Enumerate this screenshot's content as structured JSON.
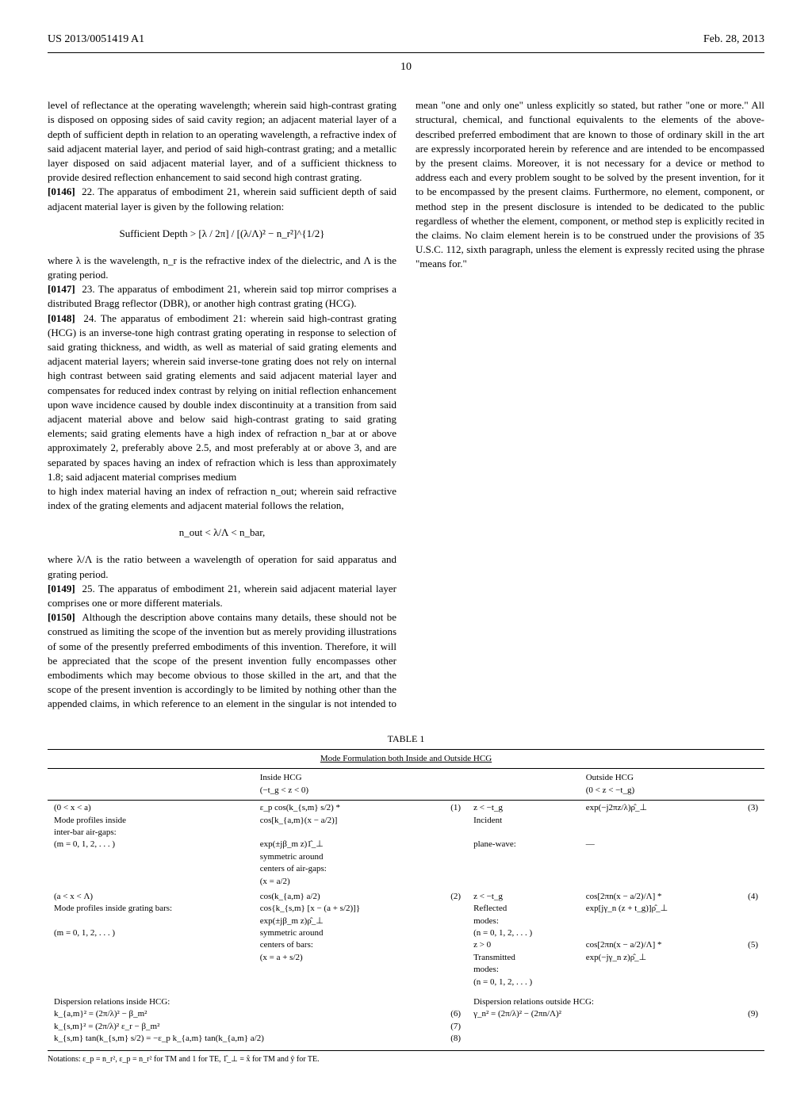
{
  "header": {
    "left": "US 2013/0051419 A1",
    "right": "Feb. 28, 2013"
  },
  "page_number": "10",
  "col1": {
    "p1": "level of reflectance at the operating wavelength; wherein said high-contrast grating is disposed on opposing sides of said cavity region; an adjacent material layer of a depth of sufficient depth in relation to an operating wavelength, a refractive index of said adjacent material layer, and period of said high-contrast grating; and a metallic layer disposed on said adjacent material layer, and of a sufficient thickness to provide desired reflection enhancement to said second high contrast grating.",
    "p2_num": "[0146]",
    "p2": "22. The apparatus of embodiment 21, wherein said sufficient depth of said adjacent material layer is given by the following relation:",
    "formula1": "Sufficient Depth > [λ / 2π] / [(λ/Λ)² − n_r²]^{1/2}",
    "p3": "where λ is the wavelength, n_r is the refractive index of the dielectric, and Λ is the grating period.",
    "p4_num": "[0147]",
    "p4": "23. The apparatus of embodiment 21, wherein said top mirror comprises a distributed Bragg reflector (DBR), or another high contrast grating (HCG).",
    "p5_num": "[0148]",
    "p5": "24. The apparatus of embodiment 21: wherein said high-contrast grating (HCG) is an inverse-tone high contrast grating operating in response to selection of said grating thickness, and width, as well as material of said grating elements and adjacent material layers; wherein said inverse-tone grating does not rely on internal high contrast between said grating elements and said adjacent material layer and compensates for reduced index contrast by relying on initial reflection enhancement upon wave incidence caused by double index discontinuity at a transition from said adjacent material above and below said high-contrast grating to said grating elements; said grating elements have a high index of refraction n_bar at or above approximately 2, preferably above 2.5, and most preferably at or above 3, and are separated by spaces having an index of refraction which is less than approximately 1.8; said adjacent material comprises medium"
  },
  "col2": {
    "p1": "to high index material having an index of refraction n_out; wherein said refractive index of the grating elements and adjacent material follows the relation,",
    "formula1": "n_out < λ/Λ < n_bar,",
    "p2": "where λ/Λ is the ratio between a wavelength of operation for said apparatus and grating period.",
    "p3_num": "[0149]",
    "p3": "25. The apparatus of embodiment 21, wherein said adjacent material layer comprises one or more different materials.",
    "p4_num": "[0150]",
    "p4": "Although the description above contains many details, these should not be construed as limiting the scope of the invention but as merely providing illustrations of some of the presently preferred embodiments of this invention. Therefore, it will be appreciated that the scope of the present invention fully encompasses other embodiments which may become obvious to those skilled in the art, and that the scope of the present invention is accordingly to be limited by nothing other than the appended claims, in which reference to an element in the singular is not intended to mean \"one and only one\" unless explicitly so stated, but rather \"one or more.\" All structural, chemical, and functional equivalents to the elements of the above-described preferred embodiment that are known to those of ordinary skill in the art are expressly incorporated herein by reference and are intended to be encompassed by the present claims. Moreover, it is not necessary for a device or method to address each and every problem sought to be solved by the present invention, for it to be encompassed by the present claims. Furthermore, no element, component, or method step in the present disclosure is intended to be dedicated to the public regardless of whether the element, component, or method step is explicitly recited in the claims. No claim element herein is to be construed under the provisions of 35 U.S.C. 112, sixth paragraph, unless the element is expressly recited using the phrase \"means for.\""
  },
  "table": {
    "label": "TABLE 1",
    "title": "Mode Formulation both Inside and Outside HCG",
    "col_head_inside": "Inside HCG",
    "col_head_inside_sub": "(−t_g < z < 0)",
    "col_head_outside": "Outside HCG",
    "col_head_outside_sub": "(0 < z < −t_g)",
    "rows": [
      {
        "c1a": "(0 < x < a)",
        "c1b": "Mode profiles inside",
        "c1c": "inter-bar air-gaps:",
        "c1d": "(m = 0, 1, 2, . . . )",
        "c2a": "ε_p cos(k_{s,m} s/2) *",
        "c2b": "cos[k_{a,m}(x − a/2)]",
        "c2c": "",
        "c2d": "exp(±jβ_m z)1̂_⊥",
        "c2e": "symmetric around",
        "c2f": "centers of air-gaps:",
        "c2g": "(x = a/2)",
        "eq1": "(1)",
        "c3a": "z < −t_g",
        "c3b": "Incident",
        "c3c": "",
        "c3d": "plane-wave:",
        "c4a": "exp(−j2πz/λ)ρ̂_⊥",
        "c4b": "",
        "c4c": "—",
        "eq2": "(3)"
      },
      {
        "c1a": "(a < x < Λ)",
        "c1b": "Mode profiles inside grating bars:",
        "c1c": "",
        "c1d": "(m = 0, 1, 2, . . . )",
        "c2a": "cos(k_{a,m} a/2)",
        "c2b": "cos{k_{s,m} [x − (a + s/2)]}",
        "c2c": "exp(±jβ_m z)ρ̂_⊥",
        "c2d": "symmetric around",
        "c2e": "centers of bars:",
        "c2f": "(x = a + s/2)",
        "eq1": "(2)",
        "c3a": "z < −t_g",
        "c3b": "Reflected",
        "c3c": "modes:",
        "c3d": "(n = 0, 1, 2, . . . )",
        "c3e": "z > 0",
        "c3f": "Transmitted",
        "c3g": "modes:",
        "c3h": "(n = 0, 1, 2, . . . )",
        "c4a": "cos[2πn(x − a/2)/Λ] *",
        "c4b": "exp[jγ_n (z + t_g)]ρ̂_⊥",
        "c4c": "",
        "c4d": "cos[2πn(x − a/2)/Λ] *",
        "c4e": "exp(−jγ_n z)ρ̂_⊥",
        "eq2": "(4)",
        "eq3": "(5)"
      }
    ],
    "dispersion_inside_label": "Dispersion relations inside HCG:",
    "disp_in_1": "k_{a,m}² = (2π/λ)² − β_m²",
    "disp_in_2": "k_{s,m}² = (2π/λ)² ε_r − β_m²",
    "disp_in_3": "k_{s,m} tan(k_{s,m} s/2) = −ε_p k_{a,m} tan(k_{a,m} a/2)",
    "disp_in_eq1": "(6)",
    "disp_in_eq2": "(7)",
    "disp_in_eq3": "(8)",
    "dispersion_outside_label": "Dispersion relations outside HCG:",
    "disp_out_1": "γ_n² = (2π/λ)² − (2πn/Λ)²",
    "disp_out_eq": "(9)",
    "footnote": "Notations: ε_p = n_r², ε_p = n_r² for TM and 1 for TE, 1̂_⊥ = x̂ for TM and ŷ for TE."
  }
}
